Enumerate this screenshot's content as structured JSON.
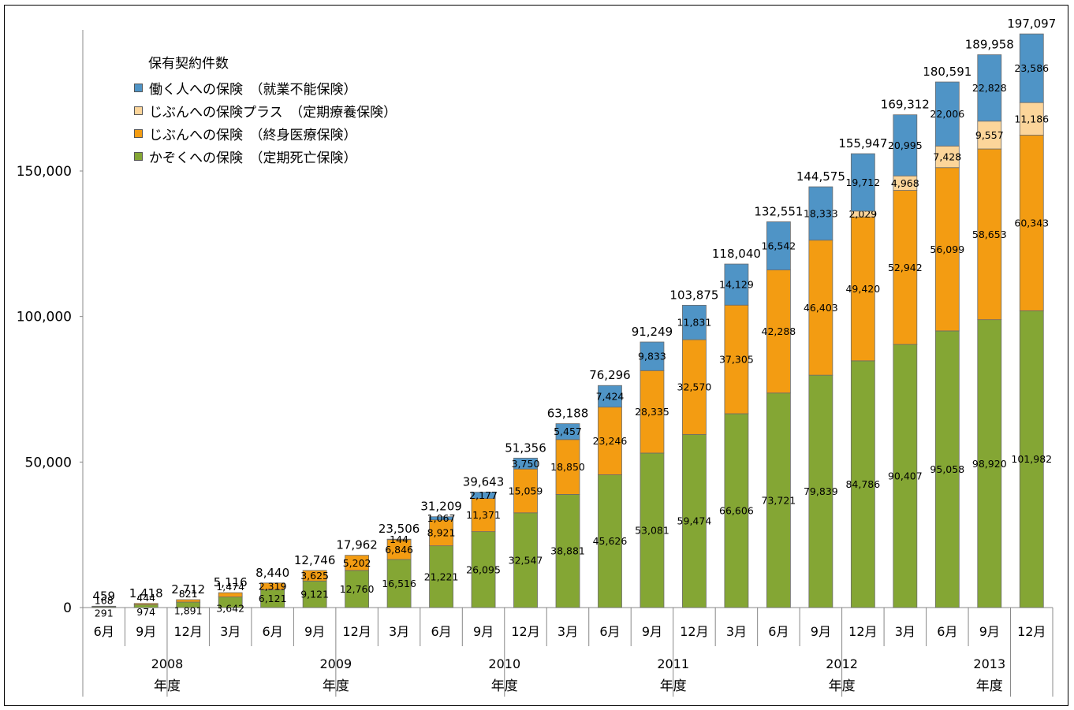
{
  "chart_data": {
    "type": "bar",
    "stacked": true,
    "ylim": [
      0,
      197097
    ],
    "y_ticks": [
      "0",
      "50,000",
      "100,000",
      "150,000"
    ],
    "y_tick_values": [
      0,
      50000,
      100000,
      150000
    ],
    "months": [
      "6月",
      "9月",
      "12月",
      "3月",
      "6月",
      "9月",
      "12月",
      "3月",
      "6月",
      "9月",
      "12月",
      "3月",
      "6月",
      "9月",
      "12月",
      "3月",
      "6月",
      "9月",
      "12月",
      "3月",
      "6月",
      "9月",
      "12月"
    ],
    "fiscal_years": [
      {
        "year": "2008",
        "suffix": "年度"
      },
      {
        "year": "2009",
        "suffix": "年度"
      },
      {
        "year": "2010",
        "suffix": "年度"
      },
      {
        "year": "2011",
        "suffix": "年度"
      },
      {
        "year": "2012",
        "suffix": "年度"
      },
      {
        "year": "2013",
        "suffix": "年度"
      }
    ],
    "legend_title": "保有契約件数",
    "series": [
      {
        "name": "かぞくへの保険　（定期死亡保険）",
        "color": "#84a634",
        "values": [
          291,
          974,
          1891,
          3642,
          6121,
          9121,
          12760,
          16516,
          21221,
          26095,
          32547,
          38881,
          45626,
          53081,
          59474,
          66606,
          73721,
          79839,
          84786,
          90407,
          95058,
          98920,
          101982
        ],
        "labels": [
          "291",
          "974",
          "1,891",
          "3,642",
          "6,121",
          "9,121",
          "12,760",
          "16,516",
          "21,221",
          "26,095",
          "32,547",
          "38,881",
          "45,626",
          "53,081",
          "59,474",
          "66,606",
          "73,721",
          "79,839",
          "84,786",
          "90,407",
          "95,058",
          "98,920",
          "101,982"
        ]
      },
      {
        "name": "じぶんへの保険　（終身医療保険）",
        "color": "#f39c12",
        "values": [
          168,
          444,
          821,
          1474,
          2319,
          3625,
          5202,
          6846,
          8921,
          11371,
          15059,
          18850,
          23246,
          28335,
          32570,
          37305,
          42288,
          46403,
          49420,
          52942,
          56099,
          58653,
          60343
        ],
        "labels": [
          "168",
          "444",
          "821",
          "1,474",
          "2,319",
          "3,625",
          "5,202",
          "6,846",
          "8,921",
          "11,371",
          "15,059",
          "18,850",
          "23,246",
          "28,335",
          "32,570",
          "37,305",
          "42,288",
          "46,403",
          "49,420",
          "52,942",
          "56,099",
          "58,653",
          "60,343"
        ]
      },
      {
        "name": "じぶんへの保険プラス　（定期療養保険）",
        "color": "#fcd59a",
        "values": [
          0,
          0,
          0,
          0,
          0,
          0,
          0,
          0,
          0,
          0,
          0,
          0,
          0,
          0,
          0,
          0,
          0,
          0,
          2029,
          4968,
          7428,
          9557,
          11186
        ],
        "labels": [
          "",
          "",
          "",
          "",
          "",
          "",
          "",
          "",
          "",
          "",
          "",
          "",
          "",
          "",
          "",
          "",
          "",
          "",
          "2,029",
          "4,968",
          "7,428",
          "9,557",
          "11,186"
        ]
      },
      {
        "name": "働く人への保険　（就業不能保険）",
        "color": "#4f94c6",
        "values": [
          0,
          0,
          0,
          0,
          0,
          0,
          0,
          144,
          1067,
          2177,
          3750,
          5457,
          7424,
          9833,
          11831,
          14129,
          16542,
          18333,
          19712,
          20995,
          22006,
          22828,
          23586
        ],
        "labels": [
          "",
          "",
          "",
          "",
          "",
          "",
          "",
          "144",
          "1,067",
          "2,177",
          "3,750",
          "5,457",
          "7,424",
          "9,833",
          "11,831",
          "14,129",
          "16,542",
          "18,333",
          "19,712",
          "20,995",
          "22,006",
          "22,828",
          "23,586"
        ]
      }
    ],
    "totals": [
      "459",
      "1,418",
      "2,712",
      "5,116",
      "8,440",
      "12,746",
      "17,962",
      "23,506",
      "31,209",
      "39,643",
      "51,356",
      "63,188",
      "76,296",
      "91,249",
      "103,875",
      "118,040",
      "132,551",
      "144,575",
      "155,947",
      "169,312",
      "180,591",
      "189,958",
      "197,097"
    ],
    "total_values": [
      459,
      1418,
      2712,
      5116,
      8440,
      12746,
      17962,
      23506,
      31209,
      39643,
      51356,
      63188,
      76296,
      91249,
      103875,
      118040,
      132551,
      144575,
      155947,
      169312,
      180591,
      189958,
      197097
    ]
  }
}
